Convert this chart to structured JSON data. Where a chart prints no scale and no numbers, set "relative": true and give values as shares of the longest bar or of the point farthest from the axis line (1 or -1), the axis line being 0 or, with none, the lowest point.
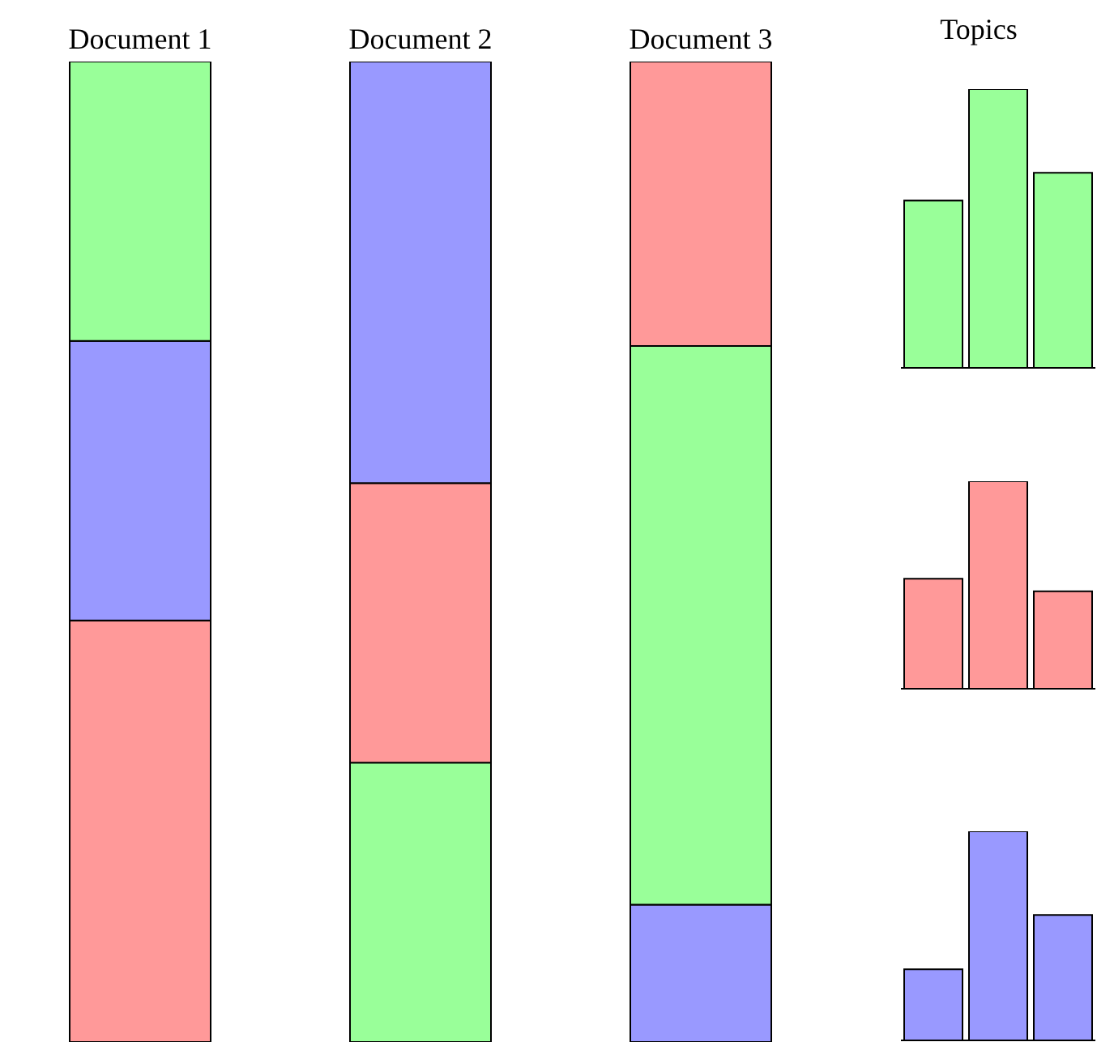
{
  "chart_data": [
    {
      "type": "bar",
      "categories": [
        "Document 1",
        "Document 2",
        "Document 3"
      ],
      "stacked": true,
      "relative": true,
      "series": [
        {
          "colors": [
            "#ff9999",
            "#99ff99",
            "#9999ff"
          ],
          "values": [
            0.43,
            0.285,
            0.14
          ]
        },
        {
          "colors": [
            "#9999ff",
            "#ff9999",
            "#99ff99"
          ],
          "values": [
            0.285,
            0.285,
            0.57
          ]
        },
        {
          "colors": [
            "#99ff99",
            "#9999ff",
            "#ff9999"
          ],
          "values": [
            0.285,
            0.43,
            0.29
          ]
        }
      ]
    },
    {
      "type": "bar",
      "title": "Topics",
      "categories": [
        null,
        null,
        null
      ],
      "relative": true,
      "color": "#99ff99",
      "values": [
        0.6,
        1,
        0.7
      ]
    },
    {
      "type": "bar",
      "categories": [
        null,
        null,
        null
      ],
      "relative": true,
      "color": "#ff9999",
      "values": [
        0.53,
        1,
        0.47
      ]
    },
    {
      "type": "bar",
      "categories": [
        null,
        null,
        null
      ],
      "relative": true,
      "color": "#9999ff",
      "values": [
        0.34,
        1,
        0.6
      ]
    }
  ]
}
